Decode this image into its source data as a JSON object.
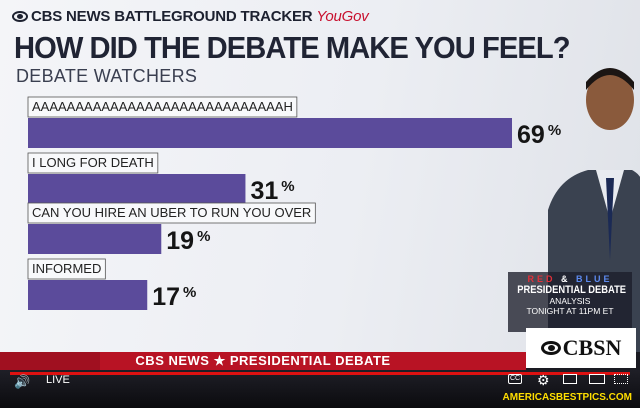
{
  "header": {
    "network": "CBS NEWS BATTLEGROUND TRACKER",
    "partner": "YouGov"
  },
  "title": "HOW DID THE DEBATE MAKE YOU FEEL?",
  "subtitle": "DEBATE WATCHERS",
  "chart_data": {
    "type": "bar",
    "orientation": "horizontal",
    "title": "HOW DID THE DEBATE MAKE YOU FEEL?",
    "subtitle": "DEBATE WATCHERS",
    "categories": [
      "AAAAAAAAAAAAAAAAAAAAAAAAAAAAAH",
      "I LONG FOR DEATH",
      "CAN YOU HIRE AN UBER TO RUN YOU OVER",
      "INFORMED"
    ],
    "values": [
      69,
      31,
      19,
      17
    ],
    "value_labels": [
      "69",
      "31",
      "19",
      "17"
    ],
    "unit": "%",
    "xlim": [
      0,
      69
    ],
    "grid": false,
    "legend": "none",
    "bar_color": "#5b4b9b"
  },
  "promo": {
    "red": "RED",
    "amp": "&",
    "blue": "BLUE",
    "title": "PRESIDENTIAL DEBATE",
    "sub": "ANALYSIS",
    "time": "TONIGHT AT 11PM ET"
  },
  "network_bug": "CBSN",
  "ticker": "CBS NEWS ★ PRESIDENTIAL DEBATE",
  "player": {
    "live_label": "LIVE",
    "cc_label": "CC",
    "watermark": "AMERICASBESTPICS.COM"
  },
  "colors": {
    "accent_red": "#c8102e",
    "bar": "#5b4b9b",
    "promo_red": "#e0303a",
    "promo_blue": "#5d8bf0"
  },
  "icons": [
    "eye-logo-icon",
    "volume-icon",
    "settings-gear-icon",
    "miniplayer-icon",
    "theater-mode-icon",
    "fullscreen-icon"
  ]
}
